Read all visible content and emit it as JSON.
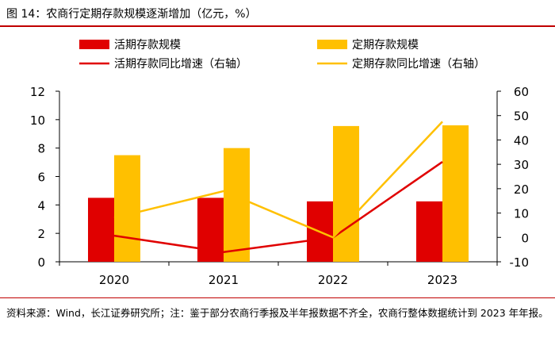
{
  "figure_title": "图 14：农商行定期存款规模逐渐增加（亿元，%）",
  "note": "资料来源：Wind，长江证券研究所；注：鉴于部分农商行季报及半年报数据不齐全，农商行整体数据统计到 2023 年年报。",
  "colors": {
    "red": "#e00000",
    "gold": "#ffc000",
    "rule": "#c00000"
  },
  "chart_data": {
    "type": "bar",
    "categories": [
      "2020",
      "2021",
      "2022",
      "2023"
    ],
    "series": [
      {
        "name": "活期存款规模",
        "kind": "bar",
        "axis": "left",
        "color": "#e00000",
        "values": [
          4.5,
          4.5,
          4.25,
          4.25
        ]
      },
      {
        "name": "定期存款规模",
        "kind": "bar",
        "axis": "left",
        "color": "#ffc000",
        "values": [
          7.5,
          8.0,
          9.55,
          9.6
        ]
      },
      {
        "name": "活期存款同比增速（右轴）",
        "kind": "line",
        "axis": "right",
        "color": "#e00000",
        "values": [
          0.7,
          -6.0,
          0.0,
          31.0
        ]
      },
      {
        "name": "定期存款同比增速（右轴）",
        "kind": "line",
        "axis": "right",
        "color": "#ffc000",
        "values": [
          8.0,
          19.0,
          0.0,
          47.5
        ]
      }
    ],
    "y_left": {
      "min": 0,
      "max": 12,
      "ticks": [
        0,
        2,
        4,
        6,
        8,
        10,
        12
      ]
    },
    "y_right": {
      "min": -10,
      "max": 60,
      "ticks": [
        -10,
        0,
        10,
        20,
        30,
        40,
        50,
        60
      ]
    },
    "legend_position": "top",
    "grid": false
  }
}
